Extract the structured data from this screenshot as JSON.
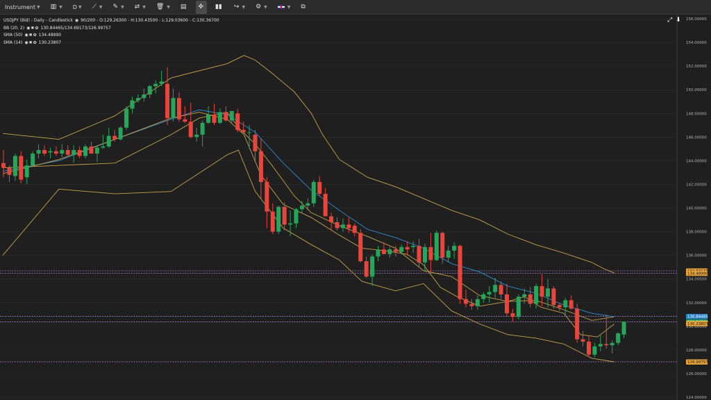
{
  "toolbar": {
    "instrument_label": "Instrument",
    "timeframe_label": "D",
    "icons": [
      "candlestick-chart-icon",
      "line-tool-icon",
      "ruler-icon",
      "compare-icon",
      "trash-icon",
      "layout-icon",
      "crosshair-icon",
      "indicator-icon",
      "share-icon",
      "settings-icon",
      "uk-flag-icon",
      "popout-icon"
    ]
  },
  "legend": {
    "title": "USDJPY (Bid) - Daily - Candlestick",
    "ohlc": "90/200 - O:129.26300 - H:130.43500 - L:129.03600 - C:130.36700",
    "indicators": [
      {
        "name": "BB (20, 2)",
        "values": "130.84465/134.69173/126.99757"
      },
      {
        "name": "SMA (50)",
        "values": "134.48990"
      },
      {
        "name": "SMA (14)",
        "values": "130.23807"
      }
    ]
  },
  "colors": {
    "background": "#1f1f1f",
    "up": "#26a65b",
    "down": "#e8453c",
    "bollinger": "#c9a24a",
    "sma50": "#2a84c6",
    "sma14": "#c9a24a",
    "grid": "#2c2c2c",
    "level_line": "#b48ad6"
  },
  "chart_data": {
    "type": "candlestick",
    "y_axis_ticks": [
      "156.00000",
      "154.00000",
      "152.00000",
      "150.00000",
      "148.00000",
      "146.00000",
      "144.00000",
      "142.00000",
      "140.00000",
      "138.00000",
      "136.00000",
      "134.00000",
      "132.00000",
      "130.00000",
      "128.00000",
      "126.00000",
      "124.00000"
    ],
    "ylim": [
      123.5,
      157
    ],
    "candles": [
      [
        143.8,
        144.9,
        142.6,
        143.4
      ],
      [
        143.4,
        143.6,
        142.2,
        142.8
      ],
      [
        142.7,
        144.6,
        142.3,
        144.4
      ],
      [
        144.4,
        144.8,
        142.1,
        142.4
      ],
      [
        142.6,
        144.1,
        142.0,
        143.6
      ],
      [
        143.6,
        144.8,
        143.5,
        144.6
      ],
      [
        144.6,
        145.4,
        144.2,
        144.9
      ],
      [
        144.9,
        145.3,
        144.4,
        144.6
      ],
      [
        144.7,
        145.1,
        144.2,
        144.8
      ],
      [
        144.8,
        145.2,
        144.4,
        144.6
      ],
      [
        144.6,
        145.4,
        144.3,
        144.9
      ],
      [
        144.9,
        145.3,
        144.4,
        144.5
      ],
      [
        144.5,
        145.3,
        143.8,
        144.9
      ],
      [
        144.9,
        145.2,
        144.2,
        144.4
      ],
      [
        144.4,
        145.4,
        144.2,
        145.2
      ],
      [
        145.2,
        145.6,
        144.6,
        144.6
      ],
      [
        144.6,
        145.2,
        143.9,
        145.1
      ],
      [
        145.1,
        146.2,
        145.0,
        145.2
      ],
      [
        145.2,
        146.8,
        145.1,
        146.1
      ],
      [
        146.1,
        146.6,
        145.6,
        145.8
      ],
      [
        145.8,
        146.9,
        145.7,
        146.8
      ],
      [
        146.8,
        148.6,
        146.6,
        148.4
      ],
      [
        148.4,
        149.4,
        148.0,
        149.1
      ],
      [
        149.1,
        149.6,
        148.9,
        149.3
      ],
      [
        149.3,
        150.1,
        149.0,
        149.6
      ],
      [
        149.6,
        150.4,
        149.3,
        150.3
      ],
      [
        150.3,
        150.8,
        149.7,
        150.5
      ],
      [
        150.5,
        151.6,
        150.3,
        150.7
      ],
      [
        150.5,
        151.9,
        147.0,
        147.6
      ],
      [
        147.6,
        150.1,
        147.3,
        149.3
      ],
      [
        149.3,
        149.8,
        147.3,
        147.5
      ],
      [
        147.5,
        148.6,
        147.2,
        147.3
      ],
      [
        147.3,
        148.9,
        145.9,
        146.0
      ],
      [
        146.0,
        146.8,
        145.6,
        146.2
      ],
      [
        146.2,
        147.4,
        145.2,
        147.2
      ],
      [
        147.2,
        148.6,
        147.1,
        147.9
      ],
      [
        147.9,
        148.8,
        147.0,
        147.2
      ],
      [
        147.2,
        148.4,
        147.1,
        148.1
      ],
      [
        148.1,
        148.6,
        147.3,
        147.4
      ],
      [
        147.4,
        148.2,
        147.2,
        148.2
      ],
      [
        148.0,
        148.4,
        146.4,
        146.6
      ],
      [
        146.6,
        147.3,
        146.4,
        146.4
      ],
      [
        146.4,
        147.0,
        145.0,
        146.4
      ],
      [
        146.2,
        146.6,
        144.0,
        144.8
      ],
      [
        144.8,
        145.9,
        140.8,
        142.2
      ],
      [
        142.2,
        142.6,
        138.3,
        139.7
      ],
      [
        139.7,
        140.4,
        137.8,
        138.0
      ],
      [
        138.0,
        140.2,
        137.8,
        140.1
      ],
      [
        140.1,
        140.5,
        138.1,
        138.6
      ],
      [
        138.6,
        139.8,
        137.6,
        138.7
      ],
      [
        138.7,
        140.0,
        138.3,
        139.9
      ],
      [
        139.9,
        140.6,
        139.6,
        140.2
      ],
      [
        140.2,
        140.8,
        139.8,
        140.4
      ],
      [
        140.4,
        142.4,
        140.1,
        142.2
      ],
      [
        142.2,
        142.7,
        141.0,
        141.2
      ],
      [
        141.2,
        141.7,
        139.3,
        139.3
      ],
      [
        139.3,
        139.6,
        138.1,
        138.8
      ],
      [
        138.8,
        139.2,
        138.1,
        138.3
      ],
      [
        138.3,
        139.1,
        138.0,
        138.6
      ],
      [
        138.6,
        139.2,
        137.9,
        138.3
      ],
      [
        138.5,
        138.7,
        137.6,
        137.9
      ],
      [
        137.9,
        138.2,
        135.4,
        135.5
      ],
      [
        135.5,
        135.9,
        134.1,
        134.2
      ],
      [
        134.2,
        136.1,
        133.4,
        135.9
      ],
      [
        135.9,
        136.8,
        135.5,
        136.5
      ],
      [
        136.5,
        137.1,
        136.1,
        136.1
      ],
      [
        136.1,
        136.7,
        135.8,
        136.5
      ],
      [
        136.5,
        136.8,
        135.9,
        136.3
      ],
      [
        136.3,
        136.9,
        136.1,
        136.7
      ],
      [
        136.7,
        137.2,
        136.0,
        136.5
      ],
      [
        136.7,
        137.2,
        136.2,
        136.8
      ],
      [
        136.8,
        137.4,
        135.0,
        135.4
      ],
      [
        135.4,
        137.0,
        134.6,
        136.7
      ],
      [
        136.7,
        137.9,
        134.6,
        135.6
      ],
      [
        135.6,
        138.1,
        135.5,
        137.9
      ],
      [
        137.9,
        138.0,
        135.3,
        135.8
      ],
      [
        135.8,
        136.8,
        135.4,
        136.4
      ],
      [
        136.4,
        137.1,
        135.7,
        136.8
      ],
      [
        136.8,
        136.9,
        131.9,
        132.3
      ],
      [
        132.3,
        133.1,
        131.6,
        131.9
      ],
      [
        131.9,
        132.3,
        131.4,
        131.7
      ],
      [
        131.7,
        132.6,
        131.4,
        132.3
      ],
      [
        132.3,
        132.9,
        132.0,
        132.7
      ],
      [
        132.7,
        133.4,
        132.0,
        132.9
      ],
      [
        132.9,
        134.1,
        132.4,
        133.5
      ],
      [
        133.5,
        133.8,
        132.3,
        132.7
      ],
      [
        132.7,
        133.6,
        130.8,
        131.1
      ],
      [
        131.1,
        131.5,
        130.4,
        130.8
      ],
      [
        130.8,
        132.7,
        130.6,
        132.5
      ],
      [
        132.5,
        133.2,
        131.9,
        132.7
      ],
      [
        132.7,
        133.3,
        131.6,
        131.9
      ],
      [
        131.9,
        133.6,
        131.5,
        133.4
      ],
      [
        133.4,
        134.4,
        131.7,
        132.5
      ],
      [
        132.5,
        134.0,
        131.6,
        133.2
      ],
      [
        133.2,
        133.4,
        131.5,
        131.8
      ],
      [
        131.8,
        132.0,
        131.3,
        131.6
      ],
      [
        131.6,
        132.4,
        131.0,
        132.2
      ],
      [
        132.2,
        132.6,
        131.4,
        131.5
      ],
      [
        131.5,
        131.9,
        128.6,
        128.9
      ],
      [
        128.9,
        129.6,
        128.3,
        128.7
      ],
      [
        128.7,
        129.2,
        127.4,
        127.6
      ],
      [
        127.6,
        128.6,
        127.4,
        128.3
      ],
      [
        128.3,
        129.3,
        127.9,
        128.5
      ],
      [
        128.5,
        131.0,
        128.1,
        128.4
      ],
      [
        128.4,
        128.8,
        127.7,
        128.6
      ],
      [
        128.6,
        129.5,
        128.4,
        129.4
      ],
      [
        129.3,
        130.4,
        129.0,
        130.4
      ]
    ],
    "bb_upper": [
      [
        0,
        146.3
      ],
      [
        20,
        145.8
      ],
      [
        40,
        147.8
      ],
      [
        60,
        151.0
      ],
      [
        80,
        152.2
      ],
      [
        86,
        152.9
      ],
      [
        90,
        152.5
      ],
      [
        96,
        151.4
      ],
      [
        104,
        149.8
      ],
      [
        110,
        148.0
      ],
      [
        114,
        146.2
      ],
      [
        120,
        144.1
      ],
      [
        130,
        142.6
      ],
      [
        140,
        141.8
      ],
      [
        150,
        140.8
      ],
      [
        160,
        139.8
      ],
      [
        170,
        139.0
      ],
      [
        180,
        137.8
      ],
      [
        190,
        136.9
      ],
      [
        200,
        136.2
      ],
      [
        210,
        135.4
      ],
      [
        214,
        134.9
      ],
      [
        218,
        134.5
      ]
    ],
    "bb_middle": [
      [
        0,
        143.4
      ],
      [
        20,
        143.6
      ],
      [
        40,
        143.8
      ],
      [
        60,
        146.2
      ],
      [
        70,
        147.6
      ],
      [
        80,
        148.1
      ],
      [
        84,
        146.8
      ],
      [
        90,
        145.4
      ],
      [
        96,
        143.6
      ],
      [
        104,
        141.0
      ],
      [
        110,
        139.6
      ],
      [
        120,
        138.5
      ],
      [
        130,
        137.6
      ],
      [
        140,
        136.6
      ],
      [
        150,
        134.7
      ],
      [
        160,
        134.2
      ],
      [
        170,
        132.6
      ],
      [
        180,
        132.1
      ],
      [
        190,
        132.2
      ],
      [
        200,
        131.4
      ],
      [
        210,
        130.5
      ],
      [
        218,
        130.8
      ]
    ],
    "bb_lower": [
      [
        0,
        136.0
      ],
      [
        20,
        141.6
      ],
      [
        40,
        141.2
      ],
      [
        60,
        141.4
      ],
      [
        80,
        144.5
      ],
      [
        84,
        144.9
      ],
      [
        90,
        141.4
      ],
      [
        100,
        138.3
      ],
      [
        110,
        136.9
      ],
      [
        120,
        135.6
      ],
      [
        128,
        133.8
      ],
      [
        140,
        133.0
      ],
      [
        150,
        133.6
      ],
      [
        160,
        131.3
      ],
      [
        170,
        130.2
      ],
      [
        180,
        129.3
      ],
      [
        190,
        129.0
      ],
      [
        200,
        128.5
      ],
      [
        210,
        127.3
      ],
      [
        218,
        127.0
      ]
    ],
    "sma50": [
      [
        0,
        143.1
      ],
      [
        20,
        144.0
      ],
      [
        40,
        145.8
      ],
      [
        60,
        147.5
      ],
      [
        70,
        148.3
      ],
      [
        80,
        147.9
      ],
      [
        90,
        146.4
      ],
      [
        100,
        143.8
      ],
      [
        110,
        141.5
      ],
      [
        120,
        139.8
      ],
      [
        130,
        138.2
      ],
      [
        140,
        137.5
      ],
      [
        150,
        136.6
      ],
      [
        160,
        135.3
      ],
      [
        170,
        134.6
      ],
      [
        180,
        133.4
      ],
      [
        190,
        132.8
      ],
      [
        200,
        131.8
      ],
      [
        210,
        131.1
      ],
      [
        218,
        130.8
      ]
    ],
    "sma14": [
      [
        0,
        142.9
      ],
      [
        20,
        144.1
      ],
      [
        40,
        145.8
      ],
      [
        60,
        147.6
      ],
      [
        70,
        148.1
      ],
      [
        80,
        147.5
      ],
      [
        86,
        146.2
      ],
      [
        92,
        142.8
      ],
      [
        100,
        140.3
      ],
      [
        110,
        139.2
      ],
      [
        120,
        137.7
      ],
      [
        128,
        136.6
      ],
      [
        136,
        136.4
      ],
      [
        144,
        136.1
      ],
      [
        150,
        135.2
      ],
      [
        156,
        133.3
      ],
      [
        162,
        132.5
      ],
      [
        170,
        131.7
      ],
      [
        180,
        132.1
      ],
      [
        186,
        132.5
      ],
      [
        192,
        131.6
      ],
      [
        200,
        131.1
      ],
      [
        206,
        129.3
      ],
      [
        212,
        129.1
      ],
      [
        218,
        130.2
      ]
    ],
    "price_tags": [
      {
        "value": 134.69173,
        "label": "134.69173",
        "bg": "#e6a23c",
        "fg": "#1a1a1a",
        "line": "#b48ad6"
      },
      {
        "value": 134.4899,
        "label": "134.48990",
        "bg": "#e6a23c",
        "fg": "#1a1a1a",
        "line": "#b48ad6"
      },
      {
        "value": 130.84465,
        "label": "130.84465",
        "bg": "#2a84c6",
        "fg": "#ffffff",
        "line": "#b48ad6"
      },
      {
        "value": 130.367,
        "label": "130.36700",
        "bg": "#26a65b",
        "fg": "#ffffff",
        "line": "#b48ad6"
      },
      {
        "value": 130.23807,
        "label": "130.23807",
        "bg": "#e6a23c",
        "fg": "#1a1a1a",
        "line": "none"
      },
      {
        "value": 126.99757,
        "label": "126.99757",
        "bg": "#e6a23c",
        "fg": "#1a1a1a",
        "line": "#b48ad6"
      }
    ]
  }
}
